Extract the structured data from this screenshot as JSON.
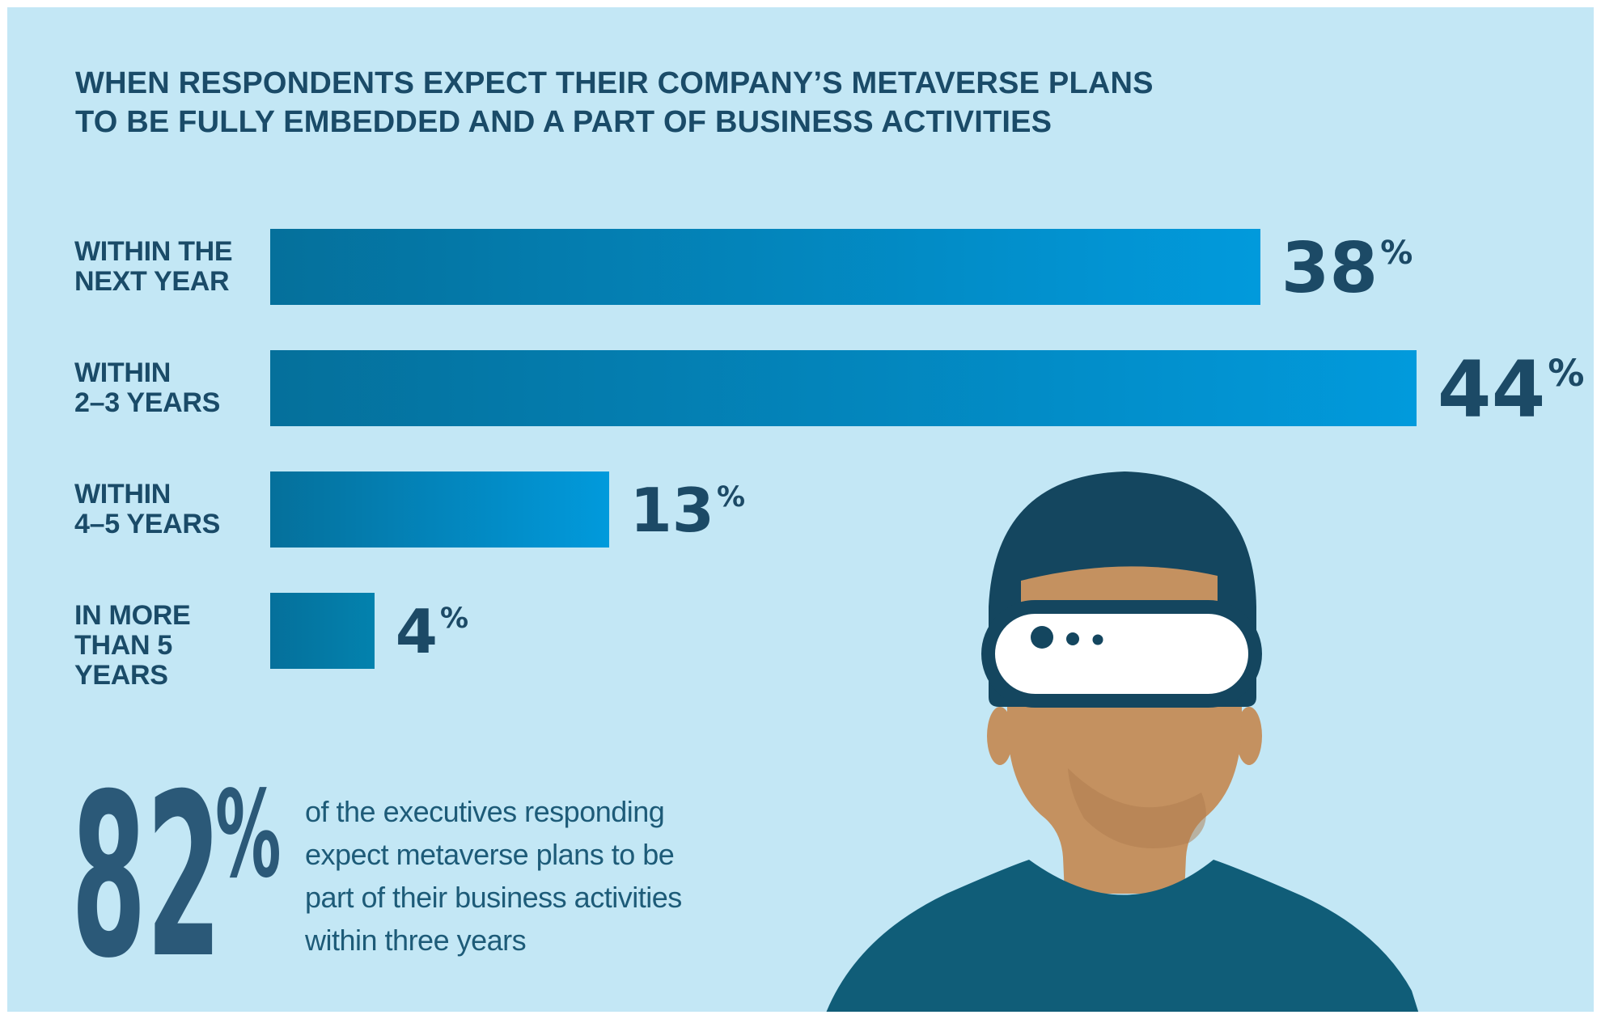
{
  "title": {
    "line1": "WHEN RESPONDENTS EXPECT THEIR COMPANY’S METAVERSE PLANS",
    "line2": "TO BE FULLY EMBEDDED AND A PART OF BUSINESS ACTIVITIES"
  },
  "chart_data": {
    "type": "bar",
    "orientation": "horizontal",
    "title": "WHEN RESPONDENTS EXPECT THEIR COMPANY’S METAVERSE PLANS TO BE FULLY EMBEDDED AND A PART OF BUSINESS ACTIVITIES",
    "unit": "%",
    "xlim": [
      0,
      44
    ],
    "grid": false,
    "legend": false,
    "categories": [
      "WITHIN THE NEXT YEAR",
      "WITHIN 2–3 YEARS",
      "WITHIN 4–5 YEARS",
      "IN MORE THAN 5 YEARS"
    ],
    "values": [
      38,
      44,
      13,
      4
    ],
    "bars": [
      {
        "label_line1": "WITHIN THE",
        "label_line2": "NEXT YEAR",
        "value": 38,
        "bar_color_end": "#019adc"
      },
      {
        "label_line1": "WITHIN",
        "label_line2": "2–3 YEARS",
        "value": 44,
        "bar_color_end": "#019adc"
      },
      {
        "label_line1": "WITHIN",
        "label_line2": "4–5 YEARS",
        "value": 13,
        "bar_color_end": "#019adc"
      },
      {
        "label_line1": "IN MORE",
        "label_line2": "THAN 5 YEARS",
        "value": 4,
        "bar_color_end": "#0382ae"
      }
    ]
  },
  "stat": {
    "value": "82",
    "unit": "%",
    "lines": [
      "of the executives responding",
      "expect metaverse plans to be",
      "part of their business activities",
      "within three years"
    ]
  },
  "illustration": {
    "description": "person wearing a VR headset and beanie"
  },
  "colors": {
    "background": "#c3e7f5",
    "frame": "#ffffff",
    "title_text": "#1a4b68",
    "value_text": "#1c4a66",
    "stat_text": "#2b5978",
    "paragraph_text": "#1d5b78",
    "bar_gradient_start": "#05709b",
    "bar_gradient_end": "#019adc",
    "bar4_gradient_end": "#0382ae",
    "illustration_navy": "#14465f",
    "illustration_skin": "#c49160",
    "illustration_skin_shadow": "#ad7c4e",
    "illustration_shirt": "#105d78",
    "headset_white": "#ffffff"
  }
}
